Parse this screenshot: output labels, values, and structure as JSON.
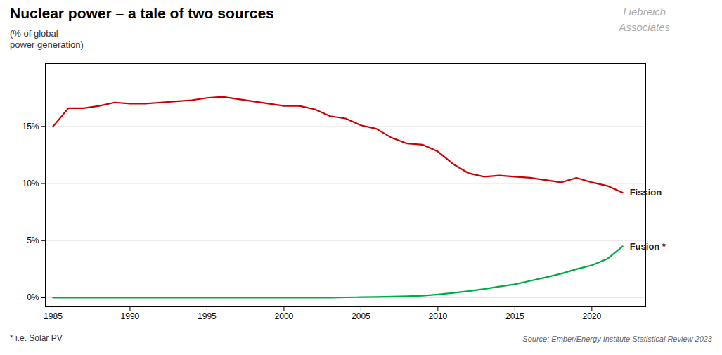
{
  "chart_data": {
    "type": "line",
    "title": "Nuclear power – a tale of two sources",
    "ylabel": "(% of global\npower generation)",
    "watermark": "Liebreich\nAssociates",
    "footnote": "* i.e. Solar PV",
    "source": "Source: Ember/Energy Institute Statistical Review 2023",
    "x": [
      1985,
      1986,
      1987,
      1988,
      1989,
      1990,
      1991,
      1992,
      1993,
      1994,
      1995,
      1996,
      1997,
      1998,
      1999,
      2000,
      2001,
      2002,
      2003,
      2004,
      2005,
      2006,
      2007,
      2008,
      2009,
      2010,
      2011,
      2012,
      2013,
      2014,
      2015,
      2016,
      2017,
      2018,
      2019,
      2020,
      2021,
      2022
    ],
    "series": [
      {
        "name": "Fission",
        "color": "#cc0000",
        "values": [
          15.0,
          16.6,
          16.6,
          16.8,
          17.1,
          17.0,
          17.0,
          17.1,
          17.2,
          17.3,
          17.5,
          17.6,
          17.4,
          17.2,
          17.0,
          16.8,
          16.8,
          16.5,
          15.9,
          15.7,
          15.1,
          14.8,
          14.0,
          13.5,
          13.4,
          12.8,
          11.7,
          10.9,
          10.6,
          10.7,
          10.6,
          10.5,
          10.3,
          10.1,
          10.5,
          10.1,
          9.8,
          9.2
        ]
      },
      {
        "name": "Fusion *",
        "color": "#00aa44",
        "values": [
          0.0,
          0.0,
          0.0,
          0.0,
          0.0,
          0.0,
          0.0,
          0.0,
          0.0,
          0.0,
          0.0,
          0.0,
          0.0,
          0.0,
          0.0,
          0.0,
          0.0,
          0.0,
          0.0,
          0.03,
          0.05,
          0.07,
          0.1,
          0.13,
          0.18,
          0.28,
          0.42,
          0.58,
          0.76,
          0.98,
          1.18,
          1.48,
          1.78,
          2.1,
          2.5,
          2.85,
          3.4,
          4.5
        ]
      }
    ],
    "xlim": [
      1984.5,
      2023.5
    ],
    "xticks": [
      1985,
      1990,
      1995,
      2000,
      2005,
      2010,
      2015,
      2020
    ],
    "ylim": [
      -0.8,
      20.5
    ],
    "yticks": [
      {
        "value": 0,
        "label": "0%"
      },
      {
        "value": 5,
        "label": "5%"
      },
      {
        "value": 10,
        "label": "10%"
      },
      {
        "value": 15,
        "label": "15%"
      }
    ],
    "grid": true
  }
}
